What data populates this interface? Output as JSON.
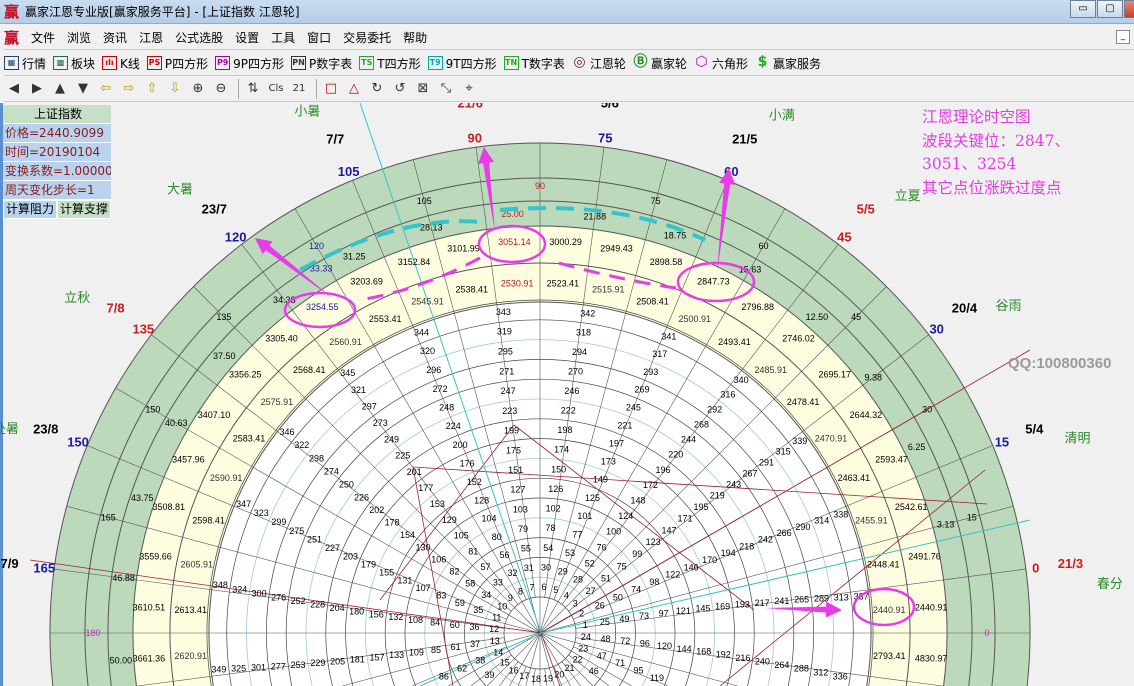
{
  "window": {
    "logo": "赢",
    "title": "赢家江恩专业版[赢家服务平台] - [上证指数 江恩轮]"
  },
  "menu": {
    "logo": "赢",
    "items": [
      "文件",
      "浏览",
      "资讯",
      "江恩",
      "公式选股",
      "设置",
      "工具",
      "窗口",
      "交易委托",
      "帮助"
    ]
  },
  "toolbar1": [
    {
      "icon": "table-icon",
      "glyph": "▦",
      "label": "行情"
    },
    {
      "icon": "blocks-icon",
      "glyph": "▩",
      "label": "板块"
    },
    {
      "icon": "candlestick-icon",
      "glyph": "ılı",
      "label": "K线"
    },
    {
      "icon": "ps-icon",
      "glyph": "PS",
      "label": "P四方形"
    },
    {
      "icon": "p9-icon",
      "glyph": "P9",
      "label": "9P四方形"
    },
    {
      "icon": "pn-icon",
      "glyph": "PN",
      "label": "P数字表"
    },
    {
      "icon": "ts-icon",
      "glyph": "TS",
      "label": "T四方形"
    },
    {
      "icon": "t9-icon",
      "glyph": "T9",
      "label": "9T四方形"
    },
    {
      "icon": "tn-icon",
      "glyph": "TN",
      "label": "T数字表"
    },
    {
      "icon": "gann-wheel-icon",
      "glyph": "◎",
      "label": "江恩轮"
    },
    {
      "icon": "big-wheel-icon",
      "glyph": "Ⓑ",
      "label": "赢家轮"
    },
    {
      "icon": "hexagon-icon",
      "glyph": "⬡",
      "label": "六角形"
    },
    {
      "icon": "dollar-icon",
      "glyph": "$",
      "label": "赢家服务"
    }
  ],
  "toolbar2": [
    {
      "icon": "arrow-left-icon",
      "glyph": "◀"
    },
    {
      "icon": "arrow-right-icon",
      "glyph": "▶"
    },
    {
      "icon": "arrow-up-icon",
      "glyph": "▲"
    },
    {
      "icon": "arrow-down-icon",
      "glyph": "▼"
    },
    {
      "icon": "move-left-icon",
      "glyph": "⇦"
    },
    {
      "icon": "move-right-icon",
      "glyph": "⇨"
    },
    {
      "icon": "move-up-icon",
      "glyph": "⇧"
    },
    {
      "icon": "move-down-icon",
      "glyph": "⇩"
    },
    {
      "icon": "zoom-in-icon",
      "glyph": "⊕"
    },
    {
      "icon": "zoom-out-icon",
      "glyph": "⊖"
    },
    {
      "icon": "sort-icon",
      "glyph": "⇅"
    },
    {
      "icon": "cls-icon",
      "glyph": "Cls"
    },
    {
      "icon": "calendar-icon",
      "glyph": "21"
    },
    {
      "icon": "rectangle-icon",
      "glyph": "□"
    },
    {
      "icon": "triangle-icon",
      "glyph": "△"
    },
    {
      "icon": "rotate-cw-icon",
      "glyph": "↻"
    },
    {
      "icon": "rotate-ccw-icon",
      "glyph": "↺"
    },
    {
      "icon": "box-x-icon",
      "glyph": "⊠"
    },
    {
      "icon": "shrink-icon",
      "glyph": "⤡"
    },
    {
      "icon": "pin-icon",
      "glyph": "⌖"
    }
  ],
  "panel": {
    "title": "上证指数",
    "price": "价格=2440.9099",
    "time": "时间=20190104",
    "coef": "变换系数=1.000000",
    "step": "周天变化步长=1",
    "calc_resistance": "计算阻力",
    "calc_support": "计算支撑"
  },
  "note": [
    "江恩理论时空图",
    "波段关键位：2847、",
    "3051、3254",
    "其它点位涨跌过度点"
  ],
  "watermark": "QQ:100800360",
  "colors": {
    "green_band": "#bcd9bc",
    "yellow_band": "#fffde0",
    "annotation": "#e83ce8",
    "cyan": "#33c4cc",
    "red": "#c81e1e",
    "blue": "#1a1a9a",
    "term": "#2a8a2a"
  },
  "chart_data": {
    "type": "gann-wheel",
    "outer_degrees": [
      {
        "v": "0",
        "c": "red",
        "date": "21/3",
        "term": "春分"
      },
      {
        "v": "15",
        "c": "blue",
        "date": "5/4",
        "term": "清明"
      },
      {
        "v": "30",
        "c": "blue",
        "date": "20/4",
        "term": "谷雨"
      },
      {
        "v": "45",
        "c": "red",
        "date": "5/5",
        "term": "立夏"
      },
      {
        "v": "60",
        "c": "blue",
        "date": "21/5",
        "term": "小满"
      },
      {
        "v": "75",
        "c": "blue",
        "date": "5/6",
        "term": ""
      },
      {
        "v": "90",
        "c": "red",
        "date": "21/6",
        "term": ""
      },
      {
        "v": "105",
        "c": "blue",
        "date": "7/7",
        "term": "小暑"
      },
      {
        "v": "120",
        "c": "blue",
        "date": "23/7",
        "term": "大暑"
      },
      {
        "v": "135",
        "c": "red",
        "date": "7/8",
        "term": "立秋"
      },
      {
        "v": "150",
        "c": "blue",
        "date": "23/8",
        "term": "处暑"
      },
      {
        "v": "165",
        "c": "blue",
        "date": "7/9",
        "term": ""
      }
    ],
    "band_degrees": [
      "0",
      "15",
      "30",
      "45",
      "60",
      "75",
      "90",
      "105",
      "120",
      "135",
      "150",
      "165",
      "180"
    ],
    "band_fractions": [
      "3.13",
      "6.25",
      "9.38",
      "12.50",
      "15.63",
      "18.75",
      "21.88",
      "25.00",
      "28.13",
      "31.25",
      "34.38",
      "37.50",
      "40.63",
      "43.75",
      "46.88",
      "50.00"
    ],
    "extra_fraction": "33.33",
    "price_outer": [
      "2440.91",
      "2491.76",
      "2542.61",
      "2593.47",
      "2644.32",
      "2695.17",
      "2746.02",
      "2796.88",
      "2847.73",
      "2898.58",
      "2949.43",
      "3000.29",
      "3051.14",
      "3101.99",
      "3152.84",
      "3203.69",
      "3254.55",
      "3305.40",
      "3356.25",
      "3407.10",
      "3457.96",
      "3508.81",
      "3559.66",
      "3610.51",
      "3661.36"
    ],
    "price_inner": [
      "2440.91",
      "2448.41",
      "2455.91",
      "2463.41",
      "2470.91",
      "2478.41",
      "2485.91",
      "2493.41",
      "2500.91",
      "2508.41",
      "2515.91",
      "2523.41",
      "2530.91",
      "2538.41",
      "2545.91",
      "2553.41",
      "2560.91",
      "2568.41",
      "2575.91",
      "2583.41",
      "2590.91",
      "2598.41",
      "2605.91",
      "2613.41",
      "2620.91"
    ],
    "price_below": {
      "inner": "2793.41",
      "outer": "4830.97"
    },
    "inner_numbers": {
      "from": 1,
      "to": 360,
      "per_ring": 24
    },
    "key_levels": [
      "3051.14",
      "2847.73",
      "3254.55",
      "2440.91"
    ]
  }
}
